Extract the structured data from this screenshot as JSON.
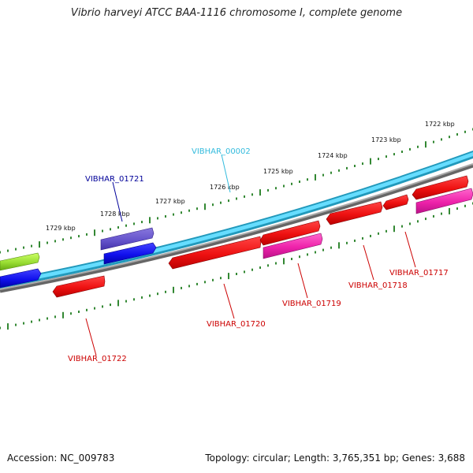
{
  "title": "Vibrio harveyi ATCC BAA-1116 chromosome I, complete genome",
  "footer": {
    "accession": "Accession: NC_009783",
    "summary": "Topology: circular; Length: 3,765,351 bp; Genes: 3,688"
  },
  "colors": {
    "forward_strand": "#44bbee",
    "backbone": "#888888",
    "ruler_ticks": "#338833",
    "gene_red": "#ee1111",
    "gene_magenta": "#ee22aa",
    "gene_blue": "#1111ee",
    "gene_purple": "#6655cc",
    "gene_lime": "#99dd33",
    "label_red": "#cc0000",
    "label_navy": "#000099",
    "label_cyan": "#33bbdd"
  },
  "ruler": {
    "labels": [
      "1729 kbp",
      "1728 kbp",
      "1727 kbp",
      "1726 kbp",
      "1725 kbp",
      "1724 kbp",
      "1723 kbp",
      "1722 kbp"
    ]
  },
  "gene_labels": [
    {
      "text": "VIBHAR_00002",
      "color": "cyan"
    },
    {
      "text": "VIBHAR_01721",
      "color": "navy"
    },
    {
      "text": "VIBHAR_01722",
      "color": "red"
    },
    {
      "text": "VIBHAR_01720",
      "color": "red"
    },
    {
      "text": "VIBHAR_01719",
      "color": "red"
    },
    {
      "text": "VIBHAR_01718",
      "color": "red"
    },
    {
      "text": "VIBHAR_01717",
      "color": "red"
    }
  ]
}
